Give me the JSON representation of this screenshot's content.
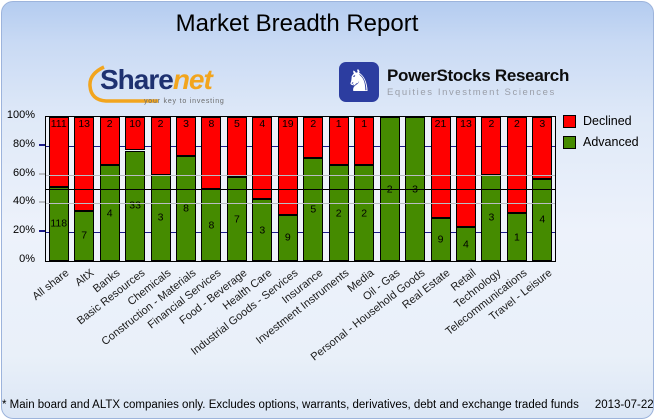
{
  "title": "Market Breadth Report",
  "logos": {
    "sharenet": {
      "text_share": "Share",
      "text_net": "net",
      "tagline": "your key to investing",
      "navy": "#1e3170",
      "orange": "#f2a51e"
    },
    "powerstocks": {
      "title": "PowerStocks  Research",
      "subtitle": "Equities Investment Sciences",
      "badge_color": "#2c3da0",
      "knight_icon": "chess-knight"
    }
  },
  "chart_data": {
    "type": "bar",
    "stacked": true,
    "normalized": "percent",
    "categories": [
      "All share",
      "AltX",
      "Banks",
      "Basic Resources",
      "Chemicals",
      "Construction - Materials",
      "Financial Services",
      "Food - Beverage",
      "Health Care",
      "Industrial Goods - Services",
      "Insurance",
      "Investment Instruments",
      "Media",
      "Oil - Gas",
      "Personal - Household Goods",
      "Real Estate",
      "Retail",
      "Technology",
      "Telecommunications",
      "Travel - Leisure"
    ],
    "series": [
      {
        "name": "Declined",
        "color": "#ff0000",
        "values": [
          111,
          13,
          2,
          10,
          2,
          3,
          8,
          5,
          4,
          19,
          2,
          1,
          1,
          0,
          0,
          21,
          13,
          2,
          2,
          3
        ]
      },
      {
        "name": "Advanced",
        "color": "#458b00",
        "values": [
          118,
          7,
          4,
          33,
          3,
          8,
          8,
          7,
          3,
          9,
          5,
          2,
          2,
          2,
          3,
          9,
          4,
          3,
          1,
          4
        ]
      }
    ],
    "ylim": [
      0,
      100
    ],
    "y_ticks": [
      {
        "label": "100%",
        "pct": 100
      },
      {
        "label": "80%",
        "pct": 80
      },
      {
        "label": "60%",
        "pct": 60
      },
      {
        "label": "40%",
        "pct": 40
      },
      {
        "label": "20%",
        "pct": 20
      },
      {
        "label": "0%",
        "pct": 0
      }
    ],
    "gridlines": {
      "navy_pct": [
        20,
        80
      ],
      "gray_pct": [
        40,
        60
      ],
      "navy_color": "#1c1c8a",
      "gray_color": "#b9bdc4"
    },
    "reference_line_pct": 50,
    "legend_position": "top-right",
    "legend": [
      {
        "label": "Declined",
        "color": "#ff0000"
      },
      {
        "label": "Advanced",
        "color": "#458b00"
      }
    ]
  },
  "footer": {
    "note": "* Main board and ALTX companies only. Excludes options, warrants, derivatives, debt and exchange traded funds",
    "date": "2013-07-22"
  }
}
